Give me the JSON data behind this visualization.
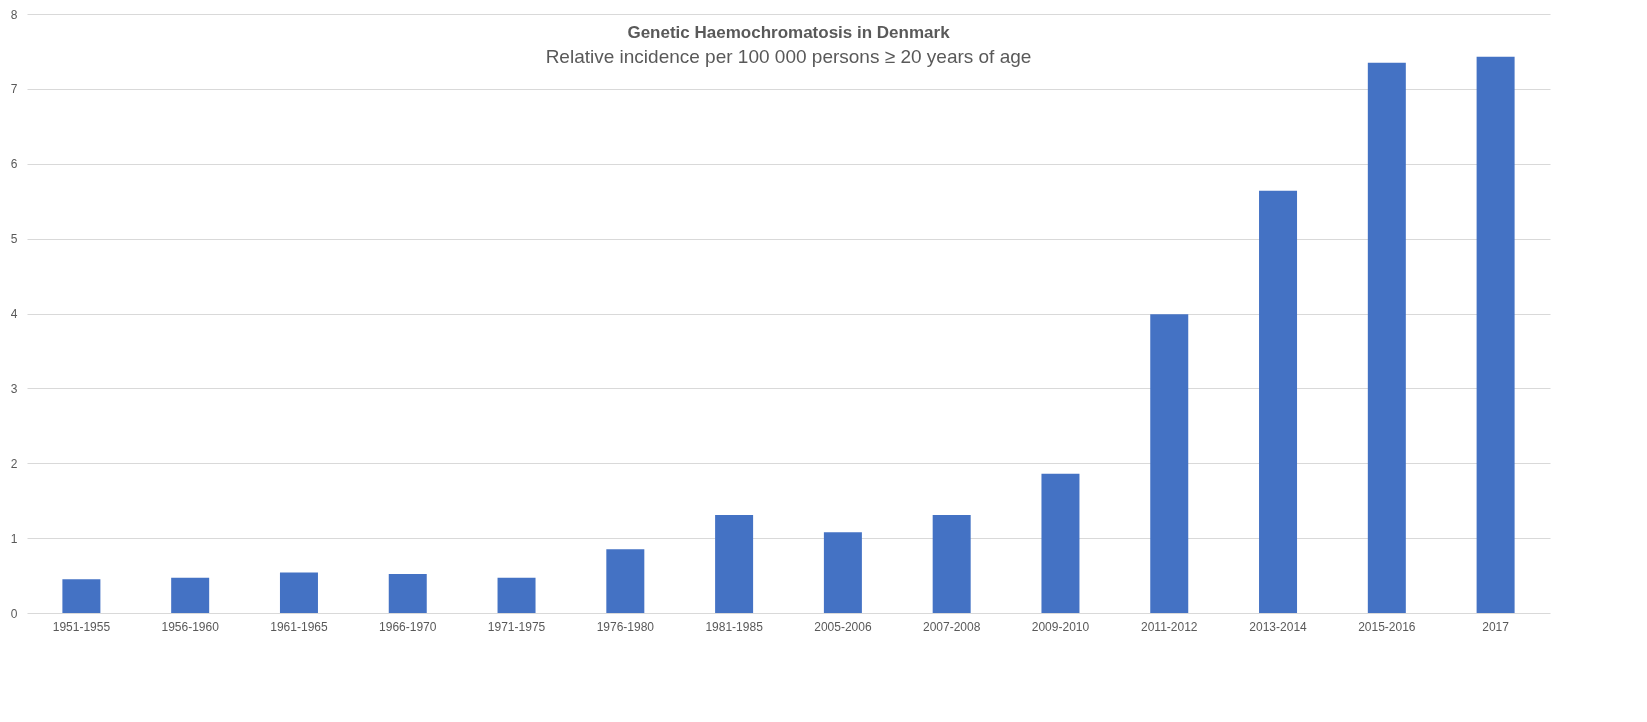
{
  "chart_data": {
    "type": "bar",
    "title": "Genetic Haemochromatosis in Denmark",
    "subtitle": "Relative incidence per 100 000 persons ≥ 20 years of age",
    "categories": [
      "1951-1955",
      "1956-1960",
      "1961-1965",
      "1966-1970",
      "1971-1975",
      "1976-1980",
      "1981-1985",
      "2005-2006",
      "2007-2008",
      "2009-2010",
      "2011-2012",
      "2013-2014",
      "2015-2016",
      "2017"
    ],
    "values": [
      0.45,
      0.47,
      0.54,
      0.52,
      0.47,
      0.85,
      1.31,
      1.08,
      1.31,
      1.86,
      3.99,
      5.64,
      7.35,
      7.43
    ],
    "color": "#4472c4",
    "ylim": [
      0,
      8
    ],
    "yticks": [
      0,
      1,
      2,
      3,
      4,
      5,
      6,
      7,
      8
    ],
    "grid": "y"
  }
}
